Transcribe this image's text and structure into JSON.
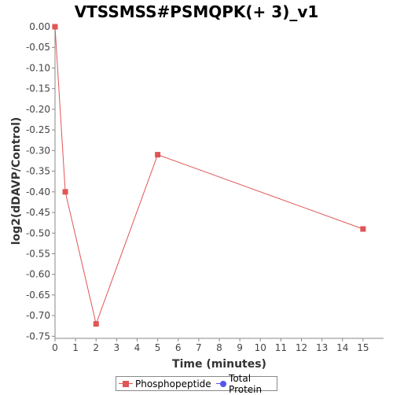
{
  "chart_data": {
    "type": "line",
    "title": "VTSSMSS#PSMQPK(+ 3)_v1",
    "xlabel": "Time (minutes)",
    "ylabel": "log2(dDAVP/Control)",
    "xlim": [
      0,
      16
    ],
    "ylim": [
      -0.755,
      0.0
    ],
    "x_ticks": [
      0,
      1,
      2,
      3,
      4,
      5,
      6,
      7,
      8,
      9,
      10,
      11,
      12,
      13,
      14,
      15
    ],
    "y_ticks": [
      0.0,
      -0.05,
      -0.1,
      -0.15,
      -0.2,
      -0.25,
      -0.3,
      -0.35,
      -0.4,
      -0.45,
      -0.5,
      -0.55,
      -0.6,
      -0.65,
      -0.7,
      -0.75
    ],
    "y_tick_labels": [
      "0.00",
      "-0.05",
      "-0.10",
      "-0.15",
      "-0.20",
      "-0.25",
      "-0.30",
      "-0.35",
      "-0.40",
      "-0.45",
      "-0.50",
      "-0.55",
      "-0.60",
      "-0.65",
      "-0.70",
      "-0.75"
    ],
    "grid": false,
    "legend_position": "bottom",
    "series": [
      {
        "name": "Phosphopeptide",
        "color": "#e05555",
        "marker": "square",
        "x": [
          0,
          0.5,
          2,
          5,
          15
        ],
        "y": [
          0.0,
          -0.4,
          -0.72,
          -0.31,
          -0.49
        ]
      },
      {
        "name": "Total Protein",
        "color": "#5555ee",
        "marker": "circle",
        "x": [],
        "y": []
      }
    ]
  }
}
